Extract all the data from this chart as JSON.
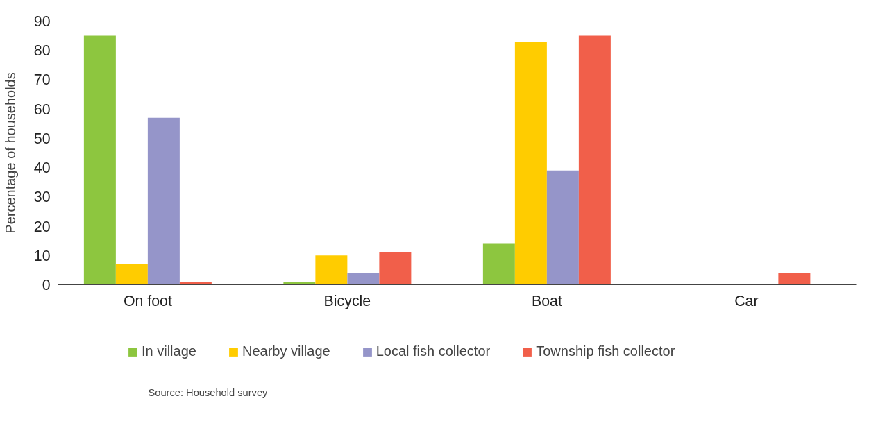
{
  "chart_data": {
    "type": "bar",
    "ylabel": "Percentage of households",
    "categories": [
      "On foot",
      "Bicycle",
      "Boat",
      "Car"
    ],
    "series": [
      {
        "name": "In village",
        "color": "#8dc63f",
        "values": [
          85,
          1,
          14,
          0
        ]
      },
      {
        "name": "Nearby village",
        "color": "#ffcc00",
        "values": [
          7,
          10,
          83,
          0
        ]
      },
      {
        "name": "Local fish collector",
        "color": "#9595c9",
        "values": [
          57,
          4,
          39,
          0
        ]
      },
      {
        "name": "Township fish collector",
        "color": "#f15f4a",
        "values": [
          1,
          11,
          85,
          4
        ]
      }
    ],
    "ylim": [
      0,
      90
    ],
    "yticks": [
      0,
      10,
      20,
      30,
      40,
      50,
      60,
      70,
      80,
      90
    ],
    "grid": false,
    "legend": "bottom",
    "annotations": [
      "Source: Household survey"
    ]
  }
}
